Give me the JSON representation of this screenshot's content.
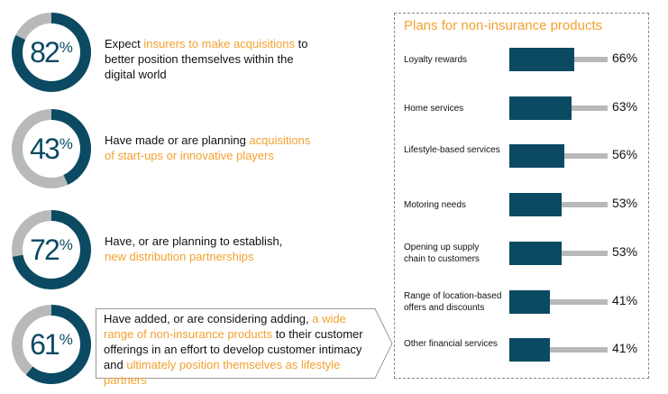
{
  "stats": [
    {
      "value": 82,
      "suffix": "%",
      "text": [
        {
          "t": "Expect ",
          "h": false
        },
        {
          "t": "insurers to make acquisitions",
          "h": true
        },
        {
          "t": " to better position themselves within the digital world",
          "h": false
        }
      ]
    },
    {
      "value": 43,
      "suffix": "%",
      "text": [
        {
          "t": "Have made or are planning ",
          "h": false
        },
        {
          "t": "acquisitions of start-ups or innovative players",
          "h": true
        }
      ]
    },
    {
      "value": 72,
      "suffix": "%",
      "text": [
        {
          "t": "Have, or are planning to establish,",
          "h": false
        },
        {
          "t": "new distribution partnerships",
          "h": true
        }
      ]
    },
    {
      "value": 61,
      "suffix": "%",
      "text": [
        {
          "t": "Have added, or are considering adding, ",
          "h": false
        },
        {
          "t": "a wide range of non-insurance products",
          "h": true
        },
        {
          "t": " to their customer offerings in an effort to develop customer intimacy and ",
          "h": false
        },
        {
          "t": "ultimately position themselves as lifestyle partners",
          "h": true
        }
      ]
    }
  ],
  "colors": {
    "dark": "#0b4a62",
    "grey": "#b7b9bb",
    "accent": "#f3a12f"
  },
  "chart_data": {
    "type": "bar",
    "title": "Plans for non-insurance products",
    "categories": [
      "Loyalty rewards",
      "Home services",
      "Lifestyle-based services",
      "Motoring needs",
      "Opening up supply chain to customers",
      "Range of location-based offers and discounts",
      "Other financial services"
    ],
    "values": [
      66,
      63,
      56,
      53,
      53,
      41,
      41
    ],
    "labels": [
      "66%",
      "63%",
      "56%",
      "53%",
      "53%",
      "41%",
      "41%"
    ],
    "ylim": [
      0,
      100
    ]
  }
}
